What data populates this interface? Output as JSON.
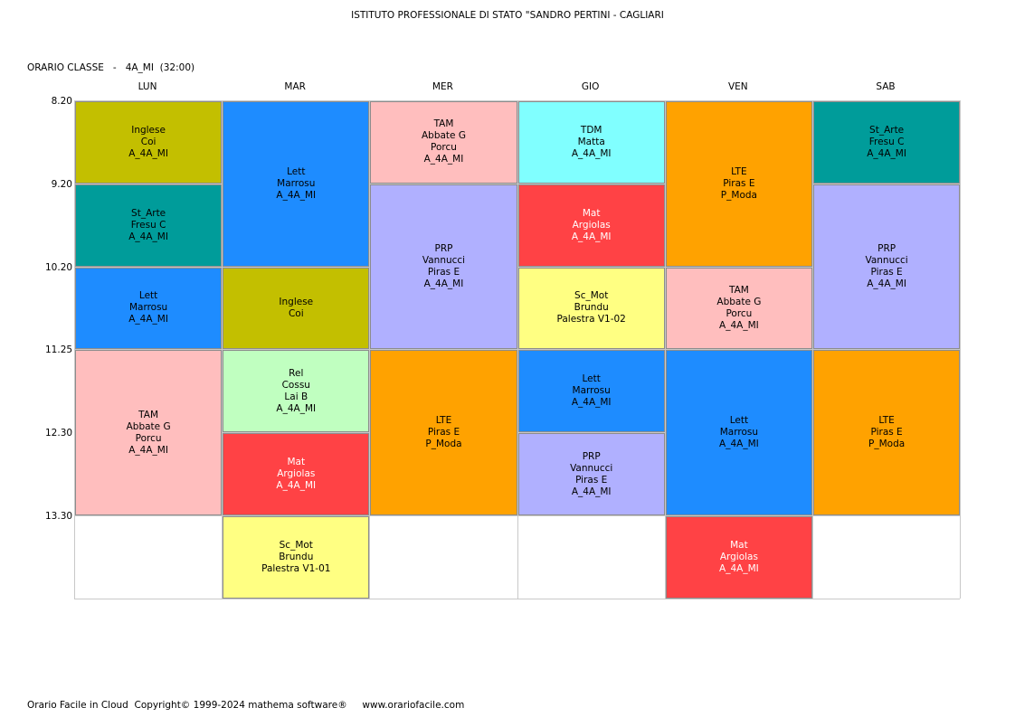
{
  "header": {
    "school": "ISTITUTO PROFESSIONALE DI STATO \"SANDRO PERTINI - CAGLIARI",
    "class_label": "ORARIO CLASSE   -   4A_MI  (32:00)"
  },
  "days": [
    "LUN",
    "MAR",
    "MER",
    "GIO",
    "VEN",
    "SAB"
  ],
  "times": [
    "8.20",
    "9.20",
    "10.20",
    "11.25",
    "12.30",
    "13.30"
  ],
  "colors": {
    "Inglese": "#c3bf00",
    "St_Arte": "#009c9a",
    "Lett": "#1e8cff",
    "TAM": "#ffbebe",
    "Rel": "#c0ffc0",
    "Mat": "#ff4245",
    "Sc_Mot": "#ffff82",
    "TDM": "#80ffff",
    "PRP": "#b0b0ff",
    "LTE": "#ffa200"
  },
  "lessons": [
    {
      "day": 0,
      "slot": 0,
      "span": 1,
      "subject": "Inglese",
      "lines": [
        "Inglese",
        "Coi",
        "A_4A_MI"
      ]
    },
    {
      "day": 0,
      "slot": 1,
      "span": 1,
      "subject": "St_Arte",
      "lines": [
        "St_Arte",
        "Fresu C",
        "A_4A_MI"
      ]
    },
    {
      "day": 0,
      "slot": 2,
      "span": 1,
      "subject": "Lett",
      "lines": [
        "Lett",
        "Marrosu",
        "A_4A_MI"
      ]
    },
    {
      "day": 0,
      "slot": 3,
      "span": 2,
      "subject": "TAM",
      "lines": [
        "TAM",
        "Abbate G",
        "Porcu",
        "A_4A_MI"
      ]
    },
    {
      "day": 1,
      "slot": 0,
      "span": 2,
      "subject": "Lett",
      "lines": [
        "Lett",
        "Marrosu",
        "A_4A_MI"
      ]
    },
    {
      "day": 1,
      "slot": 2,
      "span": 1,
      "subject": "Inglese",
      "lines": [
        "Inglese",
        "Coi"
      ]
    },
    {
      "day": 1,
      "slot": 3,
      "span": 1,
      "subject": "Rel",
      "lines": [
        "Rel",
        "Cossu",
        "Lai B",
        "A_4A_MI"
      ]
    },
    {
      "day": 1,
      "slot": 4,
      "span": 1,
      "subject": "Mat",
      "lines": [
        "Mat",
        "Argiolas",
        "A_4A_MI"
      ],
      "light": true
    },
    {
      "day": 1,
      "slot": 5,
      "span": 1,
      "subject": "Sc_Mot",
      "lines": [
        "Sc_Mot",
        "Brundu",
        "Palestra V1-01"
      ]
    },
    {
      "day": 2,
      "slot": 0,
      "span": 1,
      "subject": "TAM",
      "lines": [
        "TAM",
        "Abbate G",
        "Porcu",
        "A_4A_MI"
      ]
    },
    {
      "day": 2,
      "slot": 1,
      "span": 2,
      "subject": "PRP",
      "lines": [
        "PRP",
        "Vannucci",
        "Piras E",
        "A_4A_MI"
      ]
    },
    {
      "day": 2,
      "slot": 3,
      "span": 2,
      "subject": "LTE",
      "lines": [
        "LTE",
        "Piras E",
        "P_Moda"
      ]
    },
    {
      "day": 3,
      "slot": 0,
      "span": 1,
      "subject": "TDM",
      "lines": [
        "TDM",
        "Matta",
        "A_4A_MI"
      ]
    },
    {
      "day": 3,
      "slot": 1,
      "span": 1,
      "subject": "Mat",
      "lines": [
        "Mat",
        "Argiolas",
        "A_4A_MI"
      ],
      "light": true
    },
    {
      "day": 3,
      "slot": 2,
      "span": 1,
      "subject": "Sc_Mot",
      "lines": [
        "Sc_Mot",
        "Brundu",
        "Palestra V1-02"
      ]
    },
    {
      "day": 3,
      "slot": 3,
      "span": 1,
      "subject": "Lett",
      "lines": [
        "Lett",
        "Marrosu",
        "A_4A_MI"
      ]
    },
    {
      "day": 3,
      "slot": 4,
      "span": 1,
      "subject": "PRP",
      "lines": [
        "PRP",
        "Vannucci",
        "Piras E",
        "A_4A_MI"
      ]
    },
    {
      "day": 4,
      "slot": 0,
      "span": 2,
      "subject": "LTE",
      "lines": [
        "LTE",
        "Piras E",
        "P_Moda"
      ]
    },
    {
      "day": 4,
      "slot": 2,
      "span": 1,
      "subject": "TAM",
      "lines": [
        "TAM",
        "Abbate G",
        "Porcu",
        "A_4A_MI"
      ]
    },
    {
      "day": 4,
      "slot": 3,
      "span": 2,
      "subject": "Lett",
      "lines": [
        "Lett",
        "Marrosu",
        "A_4A_MI"
      ]
    },
    {
      "day": 4,
      "slot": 5,
      "span": 1,
      "subject": "Mat",
      "lines": [
        "Mat",
        "Argiolas",
        "A_4A_MI"
      ],
      "light": true
    },
    {
      "day": 5,
      "slot": 0,
      "span": 1,
      "subject": "St_Arte",
      "lines": [
        "St_Arte",
        "Fresu C",
        "A_4A_MI"
      ]
    },
    {
      "day": 5,
      "slot": 1,
      "span": 2,
      "subject": "PRP",
      "lines": [
        "PRP",
        "Vannucci",
        "Piras E",
        "A_4A_MI"
      ]
    },
    {
      "day": 5,
      "slot": 3,
      "span": 2,
      "subject": "LTE",
      "lines": [
        "LTE",
        "Piras E",
        "P_Moda"
      ]
    }
  ],
  "footer": {
    "text": "Orario Facile in Cloud  Copyright© 1999-2024 mathema software®     www.orariofacile.com"
  }
}
